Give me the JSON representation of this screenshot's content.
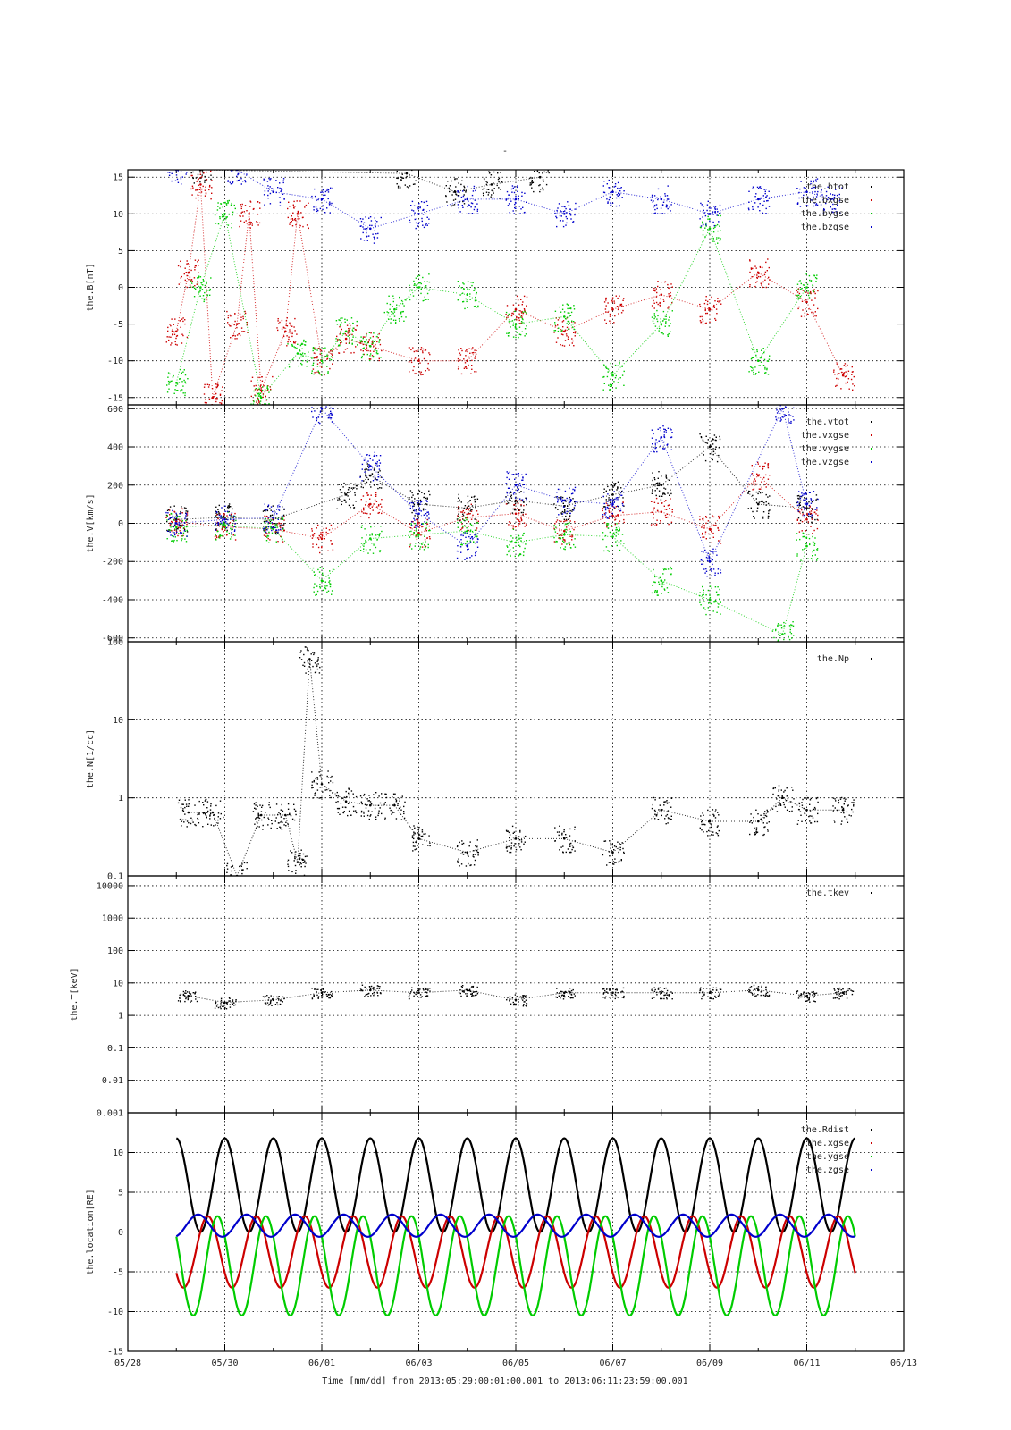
{
  "page_title": "-",
  "xaxis": {
    "tick_labels": [
      "05/28",
      "05/30",
      "06/01",
      "06/03",
      "06/05",
      "06/07",
      "06/09",
      "06/11",
      "06/13"
    ],
    "caption": "Time [mm/dd]  from 2013:05:29:00:01:00.001  to  2013:06:11:23:59:00.001"
  },
  "colors": {
    "black": "#000000",
    "red": "#cc0000",
    "green": "#00cc00",
    "blue": "#0000cc"
  },
  "chart_data": [
    {
      "type": "scatter",
      "ylabel": "the.B[nT]",
      "xlim": [
        "05/28",
        "06/13"
      ],
      "ylim": [
        -16,
        16
      ],
      "yticks": [
        -15,
        -10,
        -5,
        0,
        5,
        10,
        15
      ],
      "ytick_labels": [
        "-15",
        "-10",
        "-5",
        "0",
        "5",
        "10",
        "15"
      ],
      "legend_position": "top-right",
      "series": [
        {
          "name": "the.btot",
          "color": "#000000",
          "style": "dots",
          "points": [
            [
              "05/29 12:00",
              16
            ],
            [
              "06/02 18:00",
              15.5
            ],
            [
              "06/03 18:00",
              13
            ],
            [
              "06/04 12:00",
              14
            ],
            [
              "06/05 12:00",
              15
            ]
          ]
        },
        {
          "name": "the.bxgse",
          "color": "#cc0000",
          "style": "dots",
          "points": [
            [
              "05/29 00:00",
              -6
            ],
            [
              "05/29 06:00",
              2
            ],
            [
              "05/29 12:00",
              14
            ],
            [
              "05/29 18:00",
              -15
            ],
            [
              "05/30 06:00",
              -5
            ],
            [
              "05/30 12:00",
              10
            ],
            [
              "05/30 18:00",
              -14
            ],
            [
              "05/31 06:00",
              -6
            ],
            [
              "05/31 12:00",
              10
            ],
            [
              "06/01 00:00",
              -10
            ],
            [
              "06/01 12:00",
              -7
            ],
            [
              "06/02 00:00",
              -8
            ],
            [
              "06/03 00:00",
              -10
            ],
            [
              "06/04 00:00",
              -10
            ],
            [
              "06/05 00:00",
              -3
            ],
            [
              "06/06 00:00",
              -6
            ],
            [
              "06/07 00:00",
              -3
            ],
            [
              "06/08 00:00",
              -1
            ],
            [
              "06/09 00:00",
              -3
            ],
            [
              "06/10 00:00",
              2
            ],
            [
              "06/11 00:00",
              -2
            ],
            [
              "06/11 18:00",
              -12
            ]
          ]
        },
        {
          "name": "the.bygse",
          "color": "#00cc00",
          "style": "dots",
          "points": [
            [
              "05/29 00:00",
              -13
            ],
            [
              "05/29 12:00",
              0
            ],
            [
              "05/30 00:00",
              10
            ],
            [
              "05/30 18:00",
              -15
            ],
            [
              "05/31 12:00",
              -9
            ],
            [
              "06/01 00:00",
              -10
            ],
            [
              "06/01 12:00",
              -6
            ],
            [
              "06/02 00:00",
              -8
            ],
            [
              "06/02 12:00",
              -3
            ],
            [
              "06/03 00:00",
              0
            ],
            [
              "06/04 00:00",
              -1
            ],
            [
              "06/05 00:00",
              -5
            ],
            [
              "06/06 00:00",
              -4
            ],
            [
              "06/07 00:00",
              -12
            ],
            [
              "06/08 00:00",
              -5
            ],
            [
              "06/09 00:00",
              8
            ],
            [
              "06/10 00:00",
              -10
            ],
            [
              "06/11 00:00",
              0
            ]
          ]
        },
        {
          "name": "the.bzgse",
          "color": "#0000cc",
          "style": "dots",
          "points": [
            [
              "05/29 00:00",
              16
            ],
            [
              "05/30 06:00",
              16
            ],
            [
              "05/31 00:00",
              13
            ],
            [
              "06/01 00:00",
              12
            ],
            [
              "06/02 00:00",
              8
            ],
            [
              "06/03 00:00",
              10
            ],
            [
              "06/04 00:00",
              12
            ],
            [
              "06/05 00:00",
              12
            ],
            [
              "06/06 00:00",
              10
            ],
            [
              "06/07 00:00",
              13
            ],
            [
              "06/08 00:00",
              12
            ],
            [
              "06/09 00:00",
              10
            ],
            [
              "06/10 00:00",
              12
            ],
            [
              "06/11 00:00",
              13
            ],
            [
              "06/11 12:00",
              12
            ]
          ]
        }
      ]
    },
    {
      "type": "scatter",
      "ylabel": "the.V[km/s]",
      "xlim": [
        "05/28",
        "06/13"
      ],
      "ylim": [
        -620,
        620
      ],
      "yticks": [
        -600,
        -400,
        -200,
        0,
        200,
        400,
        600
      ],
      "ytick_labels": [
        "-600",
        "-400",
        "-200",
        "0",
        "200",
        "400",
        "600"
      ],
      "legend_position": "top-right",
      "series": [
        {
          "name": "the.vtot",
          "color": "#000000",
          "style": "dots",
          "points": [
            [
              "05/29 00:00",
              20
            ],
            [
              "05/30 00:00",
              30
            ],
            [
              "05/31 00:00",
              20
            ],
            [
              "06/01 12:00",
              150
            ],
            [
              "06/02 00:00",
              250
            ],
            [
              "06/03 00:00",
              100
            ],
            [
              "06/04 00:00",
              80
            ],
            [
              "06/05 00:00",
              120
            ],
            [
              "06/06 00:00",
              90
            ],
            [
              "06/07 00:00",
              150
            ],
            [
              "06/08 00:00",
              200
            ],
            [
              "06/09 00:00",
              400
            ],
            [
              "06/10 00:00",
              100
            ],
            [
              "06/11 00:00",
              80
            ]
          ]
        },
        {
          "name": "the.vxgse",
          "color": "#cc0000",
          "style": "dots",
          "points": [
            [
              "05/29 00:00",
              10
            ],
            [
              "05/30 00:00",
              -20
            ],
            [
              "05/31 00:00",
              -30
            ],
            [
              "06/01 00:00",
              -80
            ],
            [
              "06/02 00:00",
              100
            ],
            [
              "06/03 00:00",
              -50
            ],
            [
              "06/04 00:00",
              30
            ],
            [
              "06/05 00:00",
              50
            ],
            [
              "06/06 00:00",
              -40
            ],
            [
              "06/07 00:00",
              40
            ],
            [
              "06/08 00:00",
              60
            ],
            [
              "06/09 00:00",
              -30
            ],
            [
              "06/10 00:00",
              250
            ],
            [
              "06/11 00:00",
              20
            ]
          ]
        },
        {
          "name": "the.vygse",
          "color": "#00cc00",
          "style": "dots",
          "points": [
            [
              "05/29 00:00",
              -20
            ],
            [
              "05/30 00:00",
              -10
            ],
            [
              "05/31 00:00",
              -30
            ],
            [
              "06/01 00:00",
              -300
            ],
            [
              "06/02 00:00",
              -80
            ],
            [
              "06/03 00:00",
              -60
            ],
            [
              "06/04 00:00",
              -40
            ],
            [
              "06/05 00:00",
              -100
            ],
            [
              "06/06 00:00",
              -60
            ],
            [
              "06/07 00:00",
              -70
            ],
            [
              "06/08 00:00",
              -300
            ],
            [
              "06/09 00:00",
              -400
            ],
            [
              "06/10 12:00",
              -580
            ],
            [
              "06/11 00:00",
              -120
            ]
          ]
        },
        {
          "name": "the.vzgse",
          "color": "#0000cc",
          "style": "dots",
          "points": [
            [
              "05/29 00:00",
              0
            ],
            [
              "05/30 00:00",
              20
            ],
            [
              "05/31 00:00",
              30
            ],
            [
              "06/01 00:00",
              600
            ],
            [
              "06/02 00:00",
              300
            ],
            [
              "06/03 00:00",
              50
            ],
            [
              "06/04 00:00",
              -120
            ],
            [
              "06/05 00:00",
              200
            ],
            [
              "06/06 00:00",
              120
            ],
            [
              "06/07 00:00",
              100
            ],
            [
              "06/08 00:00",
              450
            ],
            [
              "06/09 00:00",
              -200
            ],
            [
              "06/10 12:00",
              600
            ],
            [
              "06/11 00:00",
              100
            ]
          ]
        }
      ]
    },
    {
      "type": "scatter",
      "ylabel": "the.N[1/cc]",
      "xlim": [
        "05/28",
        "06/13"
      ],
      "ylim": [
        0.1,
        100
      ],
      "yscale": "log",
      "yticks": [
        0.1,
        1,
        10,
        100
      ],
      "ytick_labels": [
        "0.1",
        "1",
        "10",
        "100"
      ],
      "legend_position": "top-right",
      "series": [
        {
          "name": "the.Np",
          "color": "#000000",
          "style": "dots",
          "points": [
            [
              "05/29 06:00",
              0.65
            ],
            [
              "05/29 18:00",
              0.65
            ],
            [
              "05/30 06:00",
              0.1
            ],
            [
              "05/30 18:00",
              0.6
            ],
            [
              "05/31 06:00",
              0.6
            ],
            [
              "05/31 12:00",
              0.15
            ],
            [
              "05/31 18:00",
              60
            ],
            [
              "06/01 00:00",
              1.5
            ],
            [
              "06/01 12:00",
              0.9
            ],
            [
              "06/02 00:00",
              0.8
            ],
            [
              "06/02 12:00",
              0.8
            ],
            [
              "06/03 00:00",
              0.3
            ],
            [
              "06/04 00:00",
              0.2
            ],
            [
              "06/05 00:00",
              0.3
            ],
            [
              "06/06 00:00",
              0.3
            ],
            [
              "06/07 00:00",
              0.2
            ],
            [
              "06/08 00:00",
              0.7
            ],
            [
              "06/09 00:00",
              0.5
            ],
            [
              "06/10 00:00",
              0.5
            ],
            [
              "06/10 12:00",
              1.0
            ],
            [
              "06/11 00:00",
              0.7
            ],
            [
              "06/11 18:00",
              0.7
            ]
          ]
        }
      ]
    },
    {
      "type": "scatter",
      "ylabel": "the.T[keV]",
      "xlim": [
        "05/28",
        "06/13"
      ],
      "ylim": [
        0.001,
        20000
      ],
      "yscale": "log",
      "yticks": [
        0.001,
        0.01,
        0.1,
        1,
        10,
        100,
        1000,
        10000
      ],
      "ytick_labels": [
        "0.001",
        "0.01",
        "0.1",
        "1",
        "10",
        "100",
        "1000",
        "10000"
      ],
      "legend_position": "top-right",
      "series": [
        {
          "name": "the.tkev",
          "color": "#000000",
          "style": "dots",
          "points": [
            [
              "05/29 06:00",
              4
            ],
            [
              "05/30 00:00",
              2.5
            ],
            [
              "05/31 00:00",
              3
            ],
            [
              "06/01 00:00",
              5
            ],
            [
              "06/02 00:00",
              6
            ],
            [
              "06/03 00:00",
              5
            ],
            [
              "06/04 00:00",
              6
            ],
            [
              "06/05 00:00",
              3
            ],
            [
              "06/06 00:00",
              5
            ],
            [
              "06/07 00:00",
              5
            ],
            [
              "06/08 00:00",
              5
            ],
            [
              "06/09 00:00",
              5
            ],
            [
              "06/10 00:00",
              6
            ],
            [
              "06/11 00:00",
              4
            ],
            [
              "06/11 18:00",
              5
            ]
          ]
        }
      ]
    },
    {
      "type": "line",
      "ylabel": "the.location[RE]",
      "xlim": [
        "05/28",
        "06/13"
      ],
      "ylim": [
        -15,
        15
      ],
      "yticks": [
        -15,
        -10,
        -5,
        0,
        5,
        10
      ],
      "ytick_labels": [
        "-15",
        "-10",
        "-5",
        "0",
        "5",
        "10"
      ],
      "legend_position": "top-right",
      "orbit_period_days": 1.0,
      "series": [
        {
          "name": "the.Rdist",
          "color": "#000000",
          "style": "line",
          "apogee": 11.8,
          "perigee": 0
        },
        {
          "name": "the.xgse",
          "color": "#cc0000",
          "style": "line",
          "range": [
            -7,
            2
          ]
        },
        {
          "name": "the.ygse",
          "color": "#00cc00",
          "style": "line",
          "range": [
            -10.5,
            2
          ]
        },
        {
          "name": "the.zgse",
          "color": "#0000cc",
          "style": "line",
          "range": [
            -0.6,
            2.2
          ]
        }
      ]
    }
  ]
}
